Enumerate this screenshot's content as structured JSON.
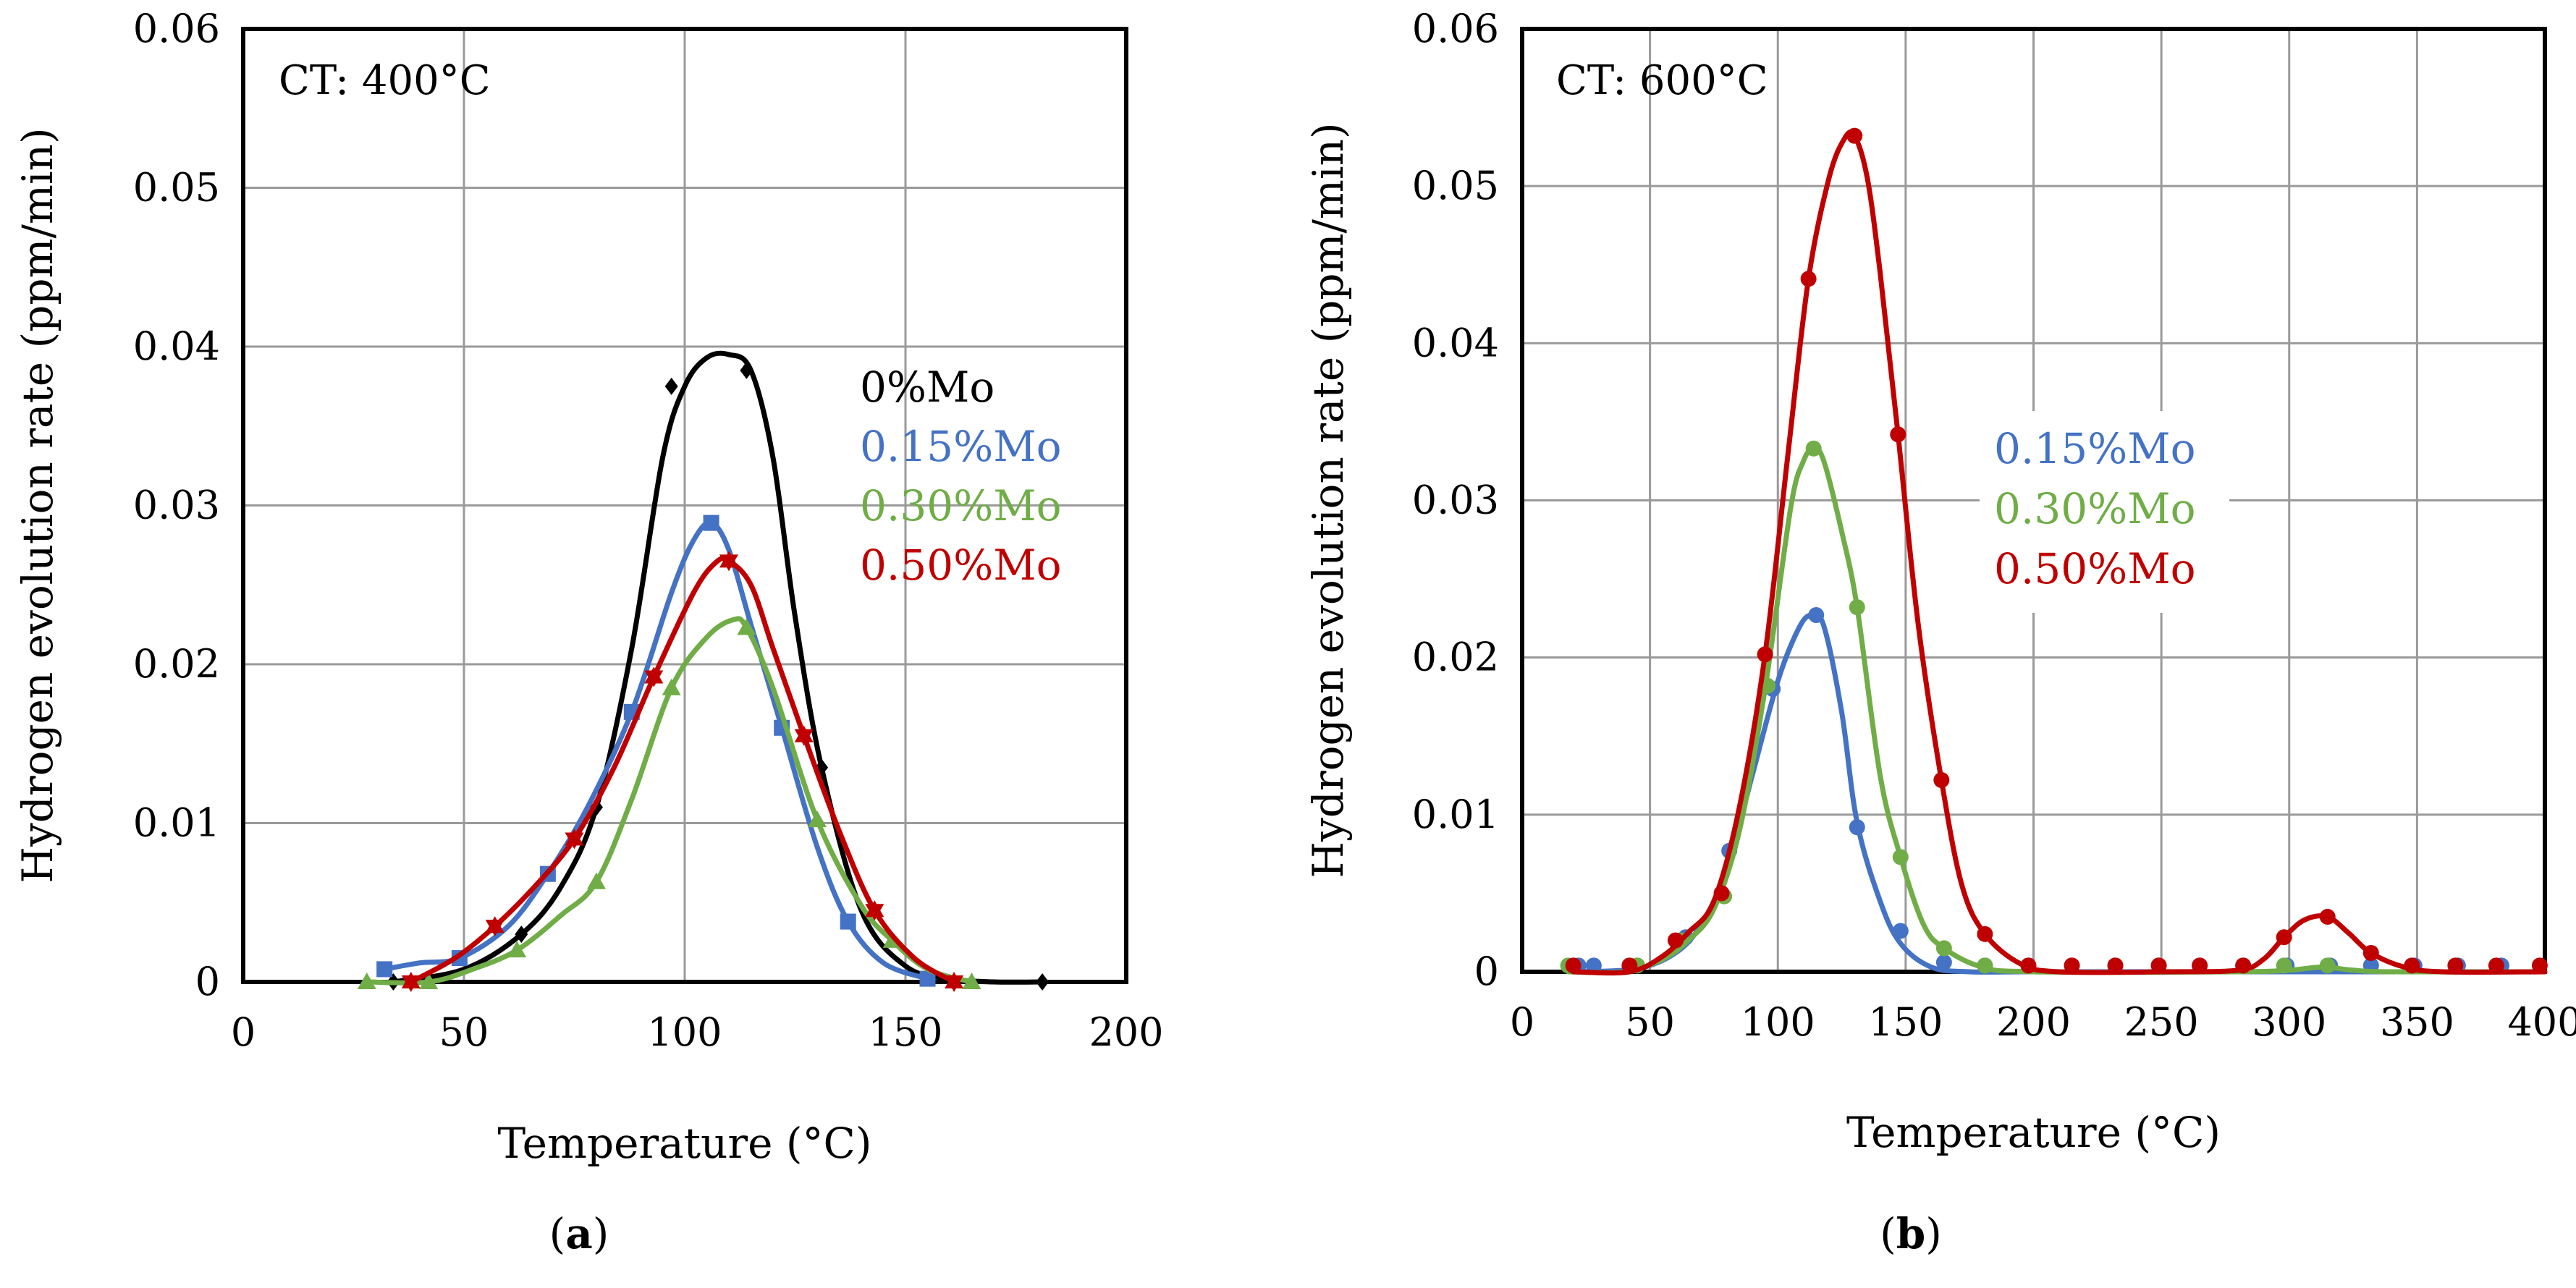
{
  "chart_data": [
    {
      "type": "line",
      "panel_label": "a",
      "annotation": "CT: 400°C",
      "xlabel": "Temperature (°C)",
      "ylabel": "Hydrogen evolution rate (ppm/min)",
      "xlim": [
        0,
        200
      ],
      "ylim": [
        0,
        0.06
      ],
      "xticks": [
        0,
        50,
        100,
        150,
        200
      ],
      "yticks": [
        0,
        0.01,
        0.02,
        0.03,
        0.04,
        0.05,
        0.06
      ],
      "xtick_labels": [
        "0",
        "50",
        "100",
        "150",
        "200"
      ],
      "ytick_labels": [
        "0",
        "0.01",
        "0.02",
        "0.03",
        "0.04",
        "0.05",
        "0.06"
      ],
      "grid": true,
      "legend": [
        "0%Mo",
        "0.15%Mo",
        "0.30%Mo",
        "0.50%Mo"
      ],
      "series": [
        {
          "name": "0%Mo",
          "color": "#000000",
          "marker": "diamond",
          "x": [
            34,
            63,
            80,
            97,
            114,
            131,
            181
          ],
          "y": [
            0.0,
            0.003,
            0.011,
            0.0375,
            0.0385,
            0.0135,
            0.0
          ],
          "curve_x": [
            34,
            50,
            63,
            72,
            80,
            88,
            95,
            100,
            105,
            110,
            115,
            120,
            125,
            131,
            140,
            150,
            160,
            170,
            181
          ],
          "curve_y": [
            0.0,
            0.0008,
            0.003,
            0.006,
            0.011,
            0.021,
            0.033,
            0.0375,
            0.0393,
            0.0395,
            0.0385,
            0.033,
            0.023,
            0.0135,
            0.0045,
            0.001,
            0.0002,
            0.0,
            0.0
          ]
        },
        {
          "name": "0.15%Mo",
          "color": "#4472C4",
          "marker": "square",
          "x": [
            32,
            49,
            69,
            88,
            106,
            122,
            137,
            155
          ],
          "y": [
            0.0008,
            0.0015,
            0.0068,
            0.017,
            0.0289,
            0.016,
            0.0038,
            0.0002
          ],
          "curve_x": [
            32,
            40,
            49,
            60,
            69,
            78,
            88,
            97,
            102,
            106,
            110,
            115,
            122,
            130,
            137,
            145,
            155
          ],
          "curve_y": [
            0.0008,
            0.0012,
            0.0015,
            0.0035,
            0.0068,
            0.011,
            0.017,
            0.0245,
            0.0278,
            0.0289,
            0.0272,
            0.0225,
            0.016,
            0.0085,
            0.0038,
            0.0012,
            0.0002
          ]
        },
        {
          "name": "0.30%Mo",
          "color": "#70AD47",
          "marker": "triangle",
          "x": [
            28,
            42,
            62,
            80,
            97,
            114,
            130,
            147,
            165
          ],
          "y": [
            0.0,
            0.0,
            0.002,
            0.0063,
            0.0185,
            0.0223,
            0.0102,
            0.0026,
            0.0
          ],
          "curve_x": [
            28,
            42,
            52,
            62,
            72,
            80,
            88,
            97,
            105,
            111,
            114,
            120,
            130,
            140,
            147,
            155,
            165
          ],
          "curve_y": [
            0.0,
            0.0,
            0.0008,
            0.002,
            0.0042,
            0.0063,
            0.0115,
            0.0185,
            0.0217,
            0.0228,
            0.0223,
            0.0185,
            0.0102,
            0.0048,
            0.0026,
            0.0008,
            0.0
          ],
          "markers_x": [
            28,
            42,
            62,
            80,
            97,
            114,
            130,
            147,
            165
          ]
        },
        {
          "name": "0.50%Mo",
          "color": "#C00000",
          "marker": "star",
          "x": [
            38,
            57,
            75,
            93,
            110,
            127,
            143,
            161
          ],
          "y": [
            0.0,
            0.0035,
            0.009,
            0.0192,
            0.0265,
            0.0155,
            0.0045,
            0.0
          ],
          "curve_x": [
            38,
            48,
            57,
            66,
            75,
            84,
            93,
            102,
            107,
            110,
            115,
            120,
            127,
            135,
            143,
            152,
            161
          ],
          "curve_y": [
            0.0,
            0.0015,
            0.0035,
            0.006,
            0.009,
            0.0135,
            0.0192,
            0.0245,
            0.0264,
            0.0265,
            0.025,
            0.021,
            0.0155,
            0.0095,
            0.0045,
            0.0015,
            0.0
          ]
        }
      ]
    },
    {
      "type": "line",
      "panel_label": "b",
      "annotation": "CT: 600°C",
      "xlabel": "Temperature (°C)",
      "ylabel": "Hydrogen evolution rate (ppm/min)",
      "xlim": [
        0,
        400
      ],
      "ylim": [
        0,
        0.06
      ],
      "xticks": [
        0,
        50,
        100,
        150,
        200,
        250,
        300,
        350,
        400
      ],
      "yticks": [
        0,
        0.01,
        0.02,
        0.03,
        0.04,
        0.05,
        0.06
      ],
      "xtick_labels": [
        "0",
        "50",
        "100",
        "150",
        "200",
        "250",
        "300",
        "350",
        "400"
      ],
      "ytick_labels": [
        "0",
        "0.01",
        "0.02",
        "0.03",
        "0.04",
        "0.05",
        "0.06"
      ],
      "grid": true,
      "legend": [
        "0.15%Mo",
        "0.30%Mo",
        "0.50%Mo"
      ],
      "series": [
        {
          "name": "0.15%Mo",
          "color": "#4472C4",
          "marker": "circle",
          "x": [
            22,
            28,
            45,
            64,
            81,
            98,
            115,
            131,
            148,
            165,
            181,
            198,
            215,
            232,
            249,
            265,
            282,
            299,
            316,
            332,
            349,
            366,
            383
          ],
          "y": [
            0.0004,
            0.0004,
            0.0004,
            0.0022,
            0.0077,
            0.018,
            0.0227,
            0.0092,
            0.0026,
            0.0006,
            0.0004,
            0.0004,
            0.0004,
            0.0004,
            0.0004,
            0.0004,
            0.0004,
            0.0004,
            0.0004,
            0.0004,
            0.0004,
            0.0004,
            0.0004
          ],
          "curve_x": [
            22,
            45,
            60,
            70,
            80,
            90,
            100,
            108,
            113,
            118,
            125,
            131,
            140,
            148,
            160,
            175,
            200,
            250,
            300,
            350,
            400
          ],
          "curve_y": [
            0.0,
            0.0002,
            0.0012,
            0.003,
            0.0065,
            0.0125,
            0.0185,
            0.0218,
            0.0227,
            0.022,
            0.0165,
            0.0095,
            0.0045,
            0.0018,
            0.0003,
            0.0,
            0.0,
            0.0,
            0.0,
            0.0,
            0.0
          ]
        },
        {
          "name": "0.30%Mo",
          "color": "#70AD47",
          "marker": "circle",
          "x": [
            18,
            45,
            62,
            79,
            96,
            114,
            131,
            148,
            165,
            181,
            298,
            315
          ],
          "y": [
            0.0004,
            0.0004,
            0.002,
            0.0048,
            0.0182,
            0.0333,
            0.0232,
            0.0073,
            0.0015,
            0.0004,
            0.0004,
            0.0004
          ],
          "curve_x": [
            18,
            40,
            55,
            65,
            75,
            85,
            95,
            105,
            110,
            114,
            118,
            125,
            131,
            140,
            148,
            157,
            165,
            180,
            200,
            280,
            300,
            313,
            325,
            340,
            400
          ],
          "curve_y": [
            0.0,
            0.0,
            0.0008,
            0.002,
            0.004,
            0.009,
            0.018,
            0.0295,
            0.0325,
            0.0333,
            0.0325,
            0.028,
            0.0232,
            0.0125,
            0.0073,
            0.003,
            0.0015,
            0.0003,
            0.0,
            0.0,
            0.0001,
            0.0003,
            0.0001,
            0.0,
            0.0
          ]
        },
        {
          "name": "0.50%Mo",
          "color": "#C00000",
          "marker": "circle",
          "x": [
            20,
            42,
            60,
            78,
            95,
            112,
            130,
            147,
            164,
            181,
            198,
            215,
            232,
            249,
            265,
            282,
            298,
            315,
            332,
            348,
            365,
            381,
            398
          ],
          "y": [
            0.0004,
            0.0004,
            0.002,
            0.005,
            0.0202,
            0.0441,
            0.0532,
            0.0342,
            0.0122,
            0.0024,
            0.0004,
            0.0004,
            0.0004,
            0.0004,
            0.0004,
            0.0004,
            0.0022,
            0.0035,
            0.0012,
            0.0004,
            0.0004,
            0.0004,
            0.0004
          ],
          "curve_x": [
            20,
            42,
            55,
            65,
            75,
            85,
            95,
            104,
            112,
            120,
            126,
            130,
            135,
            140,
            147,
            155,
            164,
            172,
            181,
            195,
            210,
            250,
            280,
            290,
            298,
            306,
            315,
            323,
            332,
            345,
            360,
            400
          ],
          "curve_y": [
            0.0,
            0.0,
            0.001,
            0.0025,
            0.0045,
            0.0105,
            0.0202,
            0.033,
            0.0441,
            0.0505,
            0.053,
            0.0532,
            0.0505,
            0.0445,
            0.0342,
            0.022,
            0.0122,
            0.0055,
            0.0024,
            0.0005,
            0.0,
            0.0,
            0.0001,
            0.0008,
            0.0022,
            0.0033,
            0.0035,
            0.0025,
            0.0012,
            0.0003,
            0.0,
            0.0
          ]
        }
      ]
    }
  ]
}
